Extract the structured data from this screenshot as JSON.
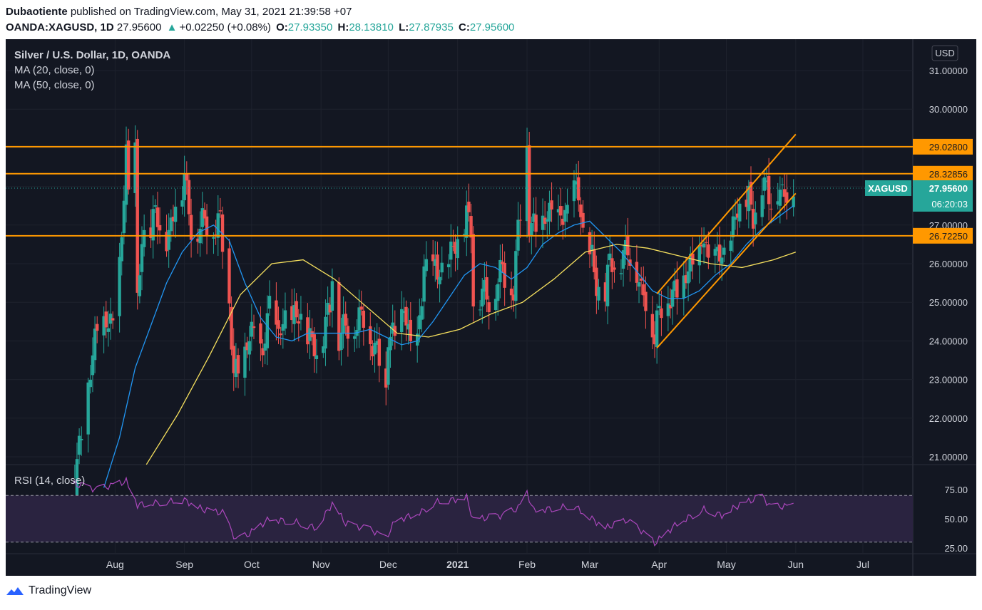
{
  "header": {
    "author": "Dubaotiente",
    "published": "published on TradingView.com, May 31, 2021 21:39:58 +07",
    "symbol": "OANDA:XAGUSD, 1D",
    "last": "27.95600",
    "change_arrow": "▲",
    "change": "+0.02250 (+0.08%)",
    "o_label": "O:",
    "o": "27.93350",
    "h_label": "H:",
    "h": "28.13810",
    "l_label": "L:",
    "l": "27.87935",
    "c_label": "C:",
    "c": "27.95600"
  },
  "legend": {
    "title": "Silver / U.S. Dollar, 1D, OANDA",
    "ma20": "MA (20, close, 0)",
    "ma50": "MA (50, close, 0)",
    "rsi": "RSI (14, close)"
  },
  "scale": {
    "currency": "USD"
  },
  "price_badge": {
    "symbol": "XAGUSD",
    "price": "27.95600",
    "countdown": "06:20:03"
  },
  "footer": {
    "brand": "TradingView"
  },
  "colors": {
    "bg": "#131722",
    "up": "#26a69a",
    "down": "#ef5350",
    "ma20": "#2196f3",
    "ma50": "#f6e05e",
    "levels": "#ff9800",
    "rsi": "#ab47bc",
    "rsi_band": "#2a2340",
    "text": "#d1d4dc"
  },
  "chart_data": {
    "type": "candlestick",
    "x_tick_labels": [
      "Aug",
      "Sep",
      "Oct",
      "Nov",
      "Dec",
      "2021",
      "Feb",
      "Mar",
      "Apr",
      "May",
      "Jun",
      "Jul"
    ],
    "price_ticks": [
      31,
      30,
      29,
      28,
      27,
      26,
      25,
      24,
      23,
      22,
      21
    ],
    "price_tick_labels": [
      "31.00000",
      "30.00000",
      "29.00000",
      "28.00000",
      "27.00000",
      "26.00000",
      "25.00000",
      "24.00000",
      "23.00000",
      "22.00000",
      "21.00000"
    ],
    "horizontal_levels": [
      {
        "value": 29.028,
        "label": "29.02800"
      },
      {
        "value": 28.32856,
        "label": "28.32856"
      },
      {
        "value": 26.7225,
        "label": "26.72250"
      }
    ],
    "last_price": 27.956,
    "channel": {
      "upper": [
        [
          "2021-04-22",
          26.72
        ],
        [
          "2021-06-01",
          29.35
        ]
      ],
      "lower": [
        [
          "2021-03-31",
          23.82
        ],
        [
          "2021-06-01",
          27.82
        ]
      ],
      "upper_start": [
        [
          "2021-03-31",
          25.22
        ]
      ]
    },
    "closes_anchor": [
      [
        "2020-07-13",
        19.8
      ],
      [
        "2020-07-20",
        22.9
      ],
      [
        "2020-07-24",
        24.2
      ],
      [
        "2020-07-27",
        24.5
      ],
      [
        "2020-07-31",
        24.3
      ],
      [
        "2020-08-04",
        26.6
      ],
      [
        "2020-08-06",
        28.9
      ],
      [
        "2020-08-07",
        27.6
      ],
      [
        "2020-08-10",
        29.1
      ],
      [
        "2020-08-11",
        25.0
      ],
      [
        "2020-08-13",
        26.5
      ],
      [
        "2020-08-17",
        26.8
      ],
      [
        "2020-08-19",
        27.4
      ],
      [
        "2020-08-21",
        26.7
      ],
      [
        "2020-08-25",
        26.6
      ],
      [
        "2020-08-28",
        27.5
      ],
      [
        "2020-09-01",
        28.2
      ],
      [
        "2020-09-04",
        26.8
      ],
      [
        "2020-09-09",
        27.0
      ],
      [
        "2020-09-14",
        26.9
      ],
      [
        "2020-09-17",
        27.0
      ],
      [
        "2020-09-21",
        25.0
      ],
      [
        "2020-09-23",
        23.0
      ],
      [
        "2020-09-25",
        23.2
      ],
      [
        "2020-09-29",
        23.9
      ],
      [
        "2020-10-02",
        24.2
      ],
      [
        "2020-10-06",
        23.6
      ],
      [
        "2020-10-09",
        24.9
      ],
      [
        "2020-10-13",
        24.1
      ],
      [
        "2020-10-16",
        24.5
      ],
      [
        "2020-10-20",
        24.6
      ],
      [
        "2020-10-23",
        24.5
      ],
      [
        "2020-10-27",
        24.0
      ],
      [
        "2020-10-30",
        23.6
      ],
      [
        "2020-11-03",
        24.4
      ],
      [
        "2020-11-05",
        24.8
      ],
      [
        "2020-11-06",
        25.7
      ],
      [
        "2020-11-09",
        24.1
      ],
      [
        "2020-11-12",
        24.3
      ],
      [
        "2020-11-17",
        24.4
      ],
      [
        "2020-11-20",
        24.6
      ],
      [
        "2020-11-24",
        23.8
      ],
      [
        "2020-11-27",
        23.5
      ],
      [
        "2020-11-30",
        22.7
      ],
      [
        "2020-12-01",
        24.0
      ],
      [
        "2020-12-04",
        24.1
      ],
      [
        "2020-12-08",
        24.8
      ],
      [
        "2020-12-11",
        23.8
      ],
      [
        "2020-12-14",
        24.0
      ],
      [
        "2020-12-16",
        25.0
      ],
      [
        "2020-12-17",
        25.8
      ],
      [
        "2020-12-21",
        26.0
      ],
      [
        "2020-12-23",
        25.6
      ],
      [
        "2020-12-28",
        26.1
      ],
      [
        "2020-12-31",
        26.4
      ],
      [
        "2021-01-05",
        27.2
      ],
      [
        "2021-01-07",
        26.8
      ],
      [
        "2021-01-08",
        25.0
      ],
      [
        "2021-01-12",
        25.2
      ],
      [
        "2021-01-15",
        25.0
      ],
      [
        "2021-01-19",
        25.5
      ],
      [
        "2021-01-21",
        25.8
      ],
      [
        "2021-01-26",
        25.2
      ],
      [
        "2021-01-28",
        26.8
      ],
      [
        "2021-02-01",
        29.0
      ],
      [
        "2021-02-02",
        26.9
      ],
      [
        "2021-02-05",
        26.9
      ],
      [
        "2021-02-09",
        27.1
      ],
      [
        "2021-02-12",
        27.3
      ],
      [
        "2021-02-17",
        27.1
      ],
      [
        "2021-02-19",
        27.3
      ],
      [
        "2021-02-22",
        28.0
      ],
      [
        "2021-02-24",
        27.7
      ],
      [
        "2021-02-26",
        26.7
      ],
      [
        "2021-03-02",
        26.1
      ],
      [
        "2021-03-04",
        25.3
      ],
      [
        "2021-03-08",
        25.2
      ],
      [
        "2021-03-10",
        26.0
      ],
      [
        "2021-03-12",
        25.9
      ],
      [
        "2021-03-16",
        26.1
      ],
      [
        "2021-03-18",
        26.3
      ],
      [
        "2021-03-22",
        25.8
      ],
      [
        "2021-03-24",
        25.1
      ],
      [
        "2021-03-26",
        25.1
      ],
      [
        "2021-03-30",
        24.0
      ],
      [
        "2021-03-31",
        24.4
      ],
      [
        "2021-04-02",
        24.9
      ],
      [
        "2021-04-06",
        25.0
      ],
      [
        "2021-04-09",
        25.3
      ],
      [
        "2021-04-13",
        25.6
      ],
      [
        "2021-04-15",
        25.9
      ],
      [
        "2021-04-19",
        26.2
      ],
      [
        "2021-04-21",
        26.6
      ],
      [
        "2021-04-23",
        26.0
      ],
      [
        "2021-04-27",
        26.2
      ],
      [
        "2021-04-29",
        26.1
      ],
      [
        "2021-05-03",
        26.5
      ],
      [
        "2021-05-05",
        27.2
      ],
      [
        "2021-05-07",
        27.4
      ],
      [
        "2021-05-11",
        27.6
      ],
      [
        "2021-05-13",
        27.1
      ],
      [
        "2021-05-17",
        28.0
      ],
      [
        "2021-05-19",
        27.8
      ],
      [
        "2021-05-21",
        27.6
      ],
      [
        "2021-05-24",
        27.9
      ],
      [
        "2021-05-26",
        27.6
      ],
      [
        "2021-05-28",
        27.9
      ],
      [
        "2021-05-31",
        27.956
      ]
    ],
    "ma20": [
      [
        "2020-07-27",
        20.2
      ],
      [
        "2020-08-03",
        21.5
      ],
      [
        "2020-08-10",
        23.3
      ],
      [
        "2020-08-17",
        24.4
      ],
      [
        "2020-08-24",
        25.5
      ],
      [
        "2020-08-31",
        26.3
      ],
      [
        "2020-09-07",
        26.8
      ],
      [
        "2020-09-14",
        27.0
      ],
      [
        "2020-09-21",
        26.6
      ],
      [
        "2020-09-28",
        25.5
      ],
      [
        "2020-10-05",
        24.6
      ],
      [
        "2020-10-12",
        24.1
      ],
      [
        "2020-10-19",
        24.0
      ],
      [
        "2020-10-26",
        24.2
      ],
      [
        "2020-11-02",
        24.2
      ],
      [
        "2020-11-09",
        24.2
      ],
      [
        "2020-11-16",
        24.2
      ],
      [
        "2020-11-23",
        24.3
      ],
      [
        "2020-11-30",
        24.1
      ],
      [
        "2020-12-07",
        23.9
      ],
      [
        "2020-12-14",
        24.0
      ],
      [
        "2020-12-21",
        24.5
      ],
      [
        "2020-12-28",
        25.1
      ],
      [
        "2021-01-04",
        25.7
      ],
      [
        "2021-01-11",
        26.0
      ],
      [
        "2021-01-18",
        25.9
      ],
      [
        "2021-01-25",
        25.6
      ],
      [
        "2021-02-01",
        25.9
      ],
      [
        "2021-02-08",
        26.5
      ],
      [
        "2021-02-15",
        26.8
      ],
      [
        "2021-02-22",
        27.0
      ],
      [
        "2021-03-01",
        27.1
      ],
      [
        "2021-03-08",
        26.7
      ],
      [
        "2021-03-15",
        26.3
      ],
      [
        "2021-03-22",
        25.8
      ],
      [
        "2021-03-29",
        25.3
      ],
      [
        "2021-04-05",
        25.1
      ],
      [
        "2021-04-12",
        25.1
      ],
      [
        "2021-04-19",
        25.3
      ],
      [
        "2021-04-26",
        25.7
      ],
      [
        "2021-05-03",
        26.0
      ],
      [
        "2021-05-10",
        26.5
      ],
      [
        "2021-05-17",
        26.9
      ],
      [
        "2021-05-24",
        27.2
      ],
      [
        "2021-05-31",
        27.5
      ]
    ],
    "ma50": [
      [
        "2020-08-15",
        20.8
      ],
      [
        "2020-08-29",
        22.1
      ],
      [
        "2020-09-12",
        23.6
      ],
      [
        "2020-09-26",
        25.2
      ],
      [
        "2020-10-10",
        26.0
      ],
      [
        "2020-10-24",
        26.1
      ],
      [
        "2020-11-07",
        25.6
      ],
      [
        "2020-11-21",
        24.9
      ],
      [
        "2020-12-05",
        24.2
      ],
      [
        "2020-12-19",
        24.1
      ],
      [
        "2021-01-02",
        24.3
      ],
      [
        "2021-01-16",
        24.7
      ],
      [
        "2021-01-30",
        25.0
      ],
      [
        "2021-02-13",
        25.6
      ],
      [
        "2021-02-27",
        26.3
      ],
      [
        "2021-03-13",
        26.5
      ],
      [
        "2021-03-27",
        26.4
      ],
      [
        "2021-04-10",
        26.2
      ],
      [
        "2021-04-24",
        26.0
      ],
      [
        "2021-05-08",
        25.9
      ],
      [
        "2021-05-22",
        26.1
      ],
      [
        "2021-06-01",
        26.3
      ]
    ],
    "rsi_ticks": [
      75,
      50,
      25
    ],
    "rsi_tick_labels": [
      "75.00",
      "50.00",
      "25.00"
    ],
    "rsi_band": [
      30,
      70
    ],
    "rsi": [
      [
        "2020-07-13",
        80
      ],
      [
        "2020-07-24",
        75
      ],
      [
        "2020-08-06",
        82
      ],
      [
        "2020-08-11",
        62
      ],
      [
        "2020-08-21",
        64
      ],
      [
        "2020-09-01",
        66
      ],
      [
        "2020-09-09",
        58
      ],
      [
        "2020-09-18",
        55
      ],
      [
        "2020-09-24",
        32
      ],
      [
        "2020-09-29",
        36
      ],
      [
        "2020-10-09",
        50
      ],
      [
        "2020-10-21",
        47
      ],
      [
        "2020-10-30",
        42
      ],
      [
        "2020-11-06",
        63
      ],
      [
        "2020-11-12",
        46
      ],
      [
        "2020-11-24",
        40
      ],
      [
        "2020-11-30",
        33
      ],
      [
        "2020-12-04",
        48
      ],
      [
        "2020-12-16",
        56
      ],
      [
        "2020-12-22",
        64
      ],
      [
        "2021-01-05",
        68
      ],
      [
        "2021-01-08",
        49
      ],
      [
        "2021-01-21",
        53
      ],
      [
        "2021-01-28",
        59
      ],
      [
        "2021-02-01",
        72
      ],
      [
        "2021-02-04",
        57
      ],
      [
        "2021-02-22",
        61
      ],
      [
        "2021-03-02",
        50
      ],
      [
        "2021-03-08",
        42
      ],
      [
        "2021-03-17",
        49
      ],
      [
        "2021-03-24",
        40
      ],
      [
        "2021-03-30",
        29
      ],
      [
        "2021-04-09",
        46
      ],
      [
        "2021-04-21",
        58
      ],
      [
        "2021-04-29",
        53
      ],
      [
        "2021-05-07",
        62
      ],
      [
        "2021-05-17",
        69
      ],
      [
        "2021-05-21",
        60
      ],
      [
        "2021-05-31",
        61
      ]
    ]
  }
}
